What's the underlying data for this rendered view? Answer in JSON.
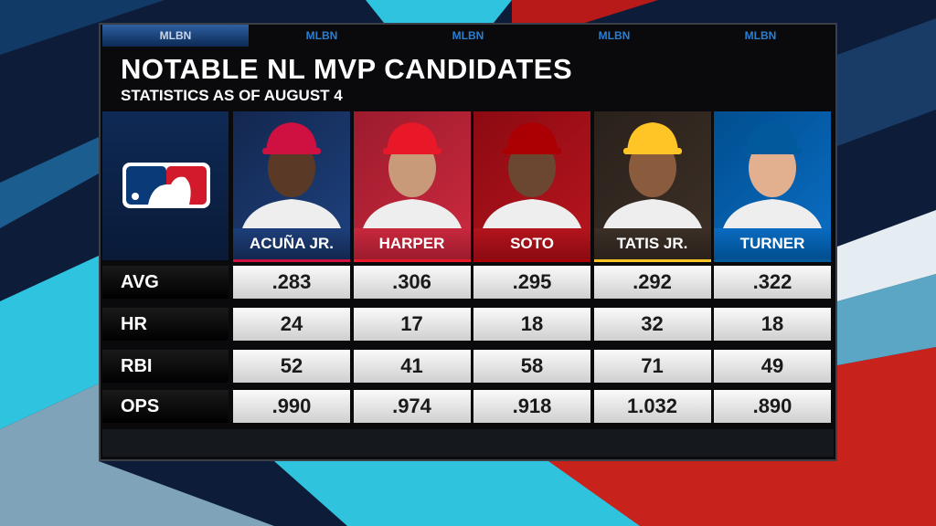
{
  "tabs": [
    "MLBN",
    "MLBN",
    "MLBN",
    "MLBN",
    "MLBN"
  ],
  "header": {
    "title": "NOTABLE NL MVP CANDIDATES",
    "subtitle": "STATISTICS AS OF AUGUST 4"
  },
  "table": {
    "columns": [
      "ACUÑA JR.",
      "HARPER",
      "SOTO",
      "TATIS JR.",
      "TURNER"
    ],
    "rows": [
      {
        "label": "AVG",
        "values": [
          ".283",
          ".306",
          ".295",
          ".292",
          ".322"
        ]
      },
      {
        "label": "HR",
        "values": [
          "24",
          "17",
          "18",
          "32",
          "18"
        ]
      },
      {
        "label": "RBI",
        "values": [
          "52",
          "41",
          "58",
          "71",
          "49"
        ]
      },
      {
        "label": "OPS",
        "values": [
          ".990",
          ".974",
          ".918",
          "1.032",
          ".890"
        ]
      }
    ]
  }
}
